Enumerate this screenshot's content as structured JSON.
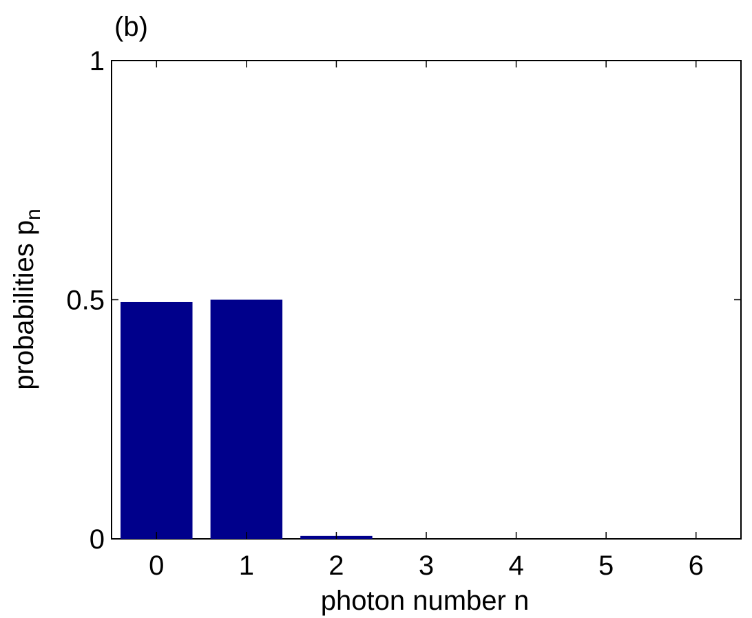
{
  "chart_data": {
    "type": "bar",
    "title": "(b)",
    "x": [
      0,
      1,
      2,
      3,
      4,
      5,
      6
    ],
    "values": [
      0.495,
      0.5,
      0.006,
      0,
      0,
      0,
      0
    ],
    "color": "#00008b",
    "xlim": [
      -0.5,
      6.5
    ],
    "xticks": [
      0,
      1,
      2,
      3,
      4,
      5,
      6
    ],
    "ylim": [
      0,
      1
    ],
    "yticks": [
      0,
      0.5,
      1
    ],
    "xlabel": "photon number n",
    "ylabel": "probabilities p",
    "ylabel_subscript": "n",
    "grid": false
  }
}
